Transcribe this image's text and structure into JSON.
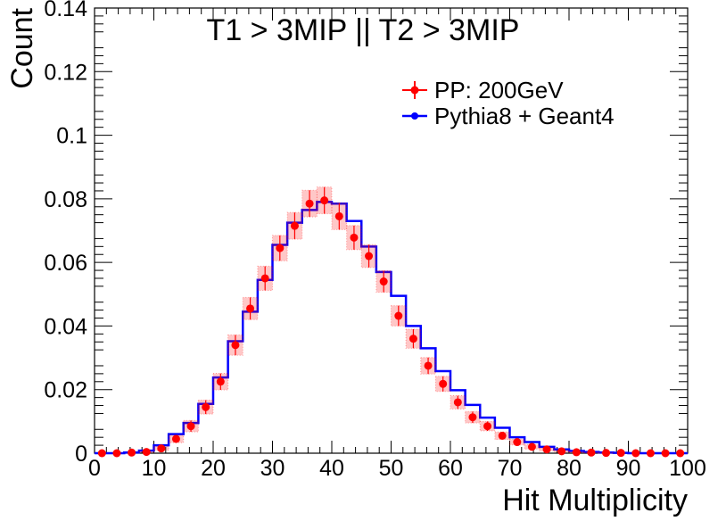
{
  "chart_data": {
    "type": "histogram-with-points",
    "title": "T1 > 3MIP || T2 > 3MIP",
    "xlabel": "Hit Multiplicity",
    "ylabel": "Count",
    "xlim": [
      0,
      100
    ],
    "ylim": [
      0,
      0.14
    ],
    "x_ticks": [
      "0",
      "10",
      "20",
      "30",
      "40",
      "50",
      "60",
      "70",
      "80",
      "90",
      "100"
    ],
    "y_ticks": [
      "0",
      "0.02",
      "0.04",
      "0.06",
      "0.08",
      "0.1",
      "0.12",
      "0.14"
    ],
    "bin_width": 2.5,
    "series": [
      {
        "name": "PP: 200GeV",
        "style": "points-with-errors",
        "color": "#ff0000",
        "x": [
          1.25,
          3.75,
          6.25,
          8.75,
          11.25,
          13.75,
          16.25,
          18.75,
          21.25,
          23.75,
          26.25,
          28.75,
          31.25,
          33.75,
          36.25,
          38.75,
          41.25,
          43.75,
          46.25,
          48.75,
          51.25,
          53.75,
          56.25,
          58.75,
          61.25,
          63.75,
          66.25,
          68.75,
          71.25,
          73.75,
          76.25,
          78.75,
          81.25,
          83.75,
          86.25,
          88.75,
          91.25,
          93.75,
          96.25,
          98.75
        ],
        "y": [
          0.0,
          0.0,
          0.0002,
          0.0004,
          0.0015,
          0.0045,
          0.0085,
          0.0145,
          0.0225,
          0.034,
          0.0455,
          0.055,
          0.0645,
          0.0715,
          0.0785,
          0.0795,
          0.0745,
          0.0678,
          0.062,
          0.054,
          0.0432,
          0.036,
          0.0275,
          0.0218,
          0.016,
          0.0113,
          0.0085,
          0.0055,
          0.0035,
          0.002,
          0.0012,
          0.0006,
          0.0003,
          0.0002,
          0.0001,
          0.0001,
          0.0,
          0.0,
          0.0,
          0.0
        ],
        "yerr": [
          0.0,
          0.0,
          0.0,
          0.0002,
          0.0006,
          0.0012,
          0.0018,
          0.0022,
          0.0026,
          0.0032,
          0.0035,
          0.0038,
          0.004,
          0.0042,
          0.0042,
          0.0042,
          0.0042,
          0.0038,
          0.0036,
          0.0034,
          0.0032,
          0.003,
          0.0026,
          0.0024,
          0.0021,
          0.0018,
          0.0015,
          0.0012,
          0.0009,
          0.0007,
          0.0005,
          0.0003,
          0.0002,
          0.0001,
          0.0001,
          0.0,
          0.0,
          0.0,
          0.0,
          0.0
        ]
      },
      {
        "name": "Pythia8 + Geant4",
        "style": "step",
        "color": "#0000ff",
        "bin_edges": [
          0,
          2.5,
          5,
          7.5,
          10,
          12.5,
          15,
          17.5,
          20,
          22.5,
          25,
          27.5,
          30,
          32.5,
          35,
          37.5,
          40,
          42.5,
          45,
          47.5,
          50,
          52.5,
          55,
          57.5,
          60,
          62.5,
          65,
          67.5,
          70,
          72.5,
          75,
          77.5,
          80,
          82.5,
          85,
          87.5,
          90,
          92.5,
          95,
          97.5,
          100
        ],
        "values": [
          0.0,
          0.0,
          0.0002,
          0.0008,
          0.0025,
          0.006,
          0.0095,
          0.0155,
          0.0238,
          0.0352,
          0.0445,
          0.0545,
          0.0655,
          0.0725,
          0.0765,
          0.079,
          0.0785,
          0.073,
          0.065,
          0.057,
          0.0495,
          0.04,
          0.033,
          0.0258,
          0.0198,
          0.0152,
          0.0112,
          0.008,
          0.005,
          0.0035,
          0.002,
          0.0012,
          0.0007,
          0.0004,
          0.0002,
          0.0001,
          0.0,
          0.0,
          0.0,
          0.0
        ]
      }
    ],
    "legend_position": "top-right"
  }
}
